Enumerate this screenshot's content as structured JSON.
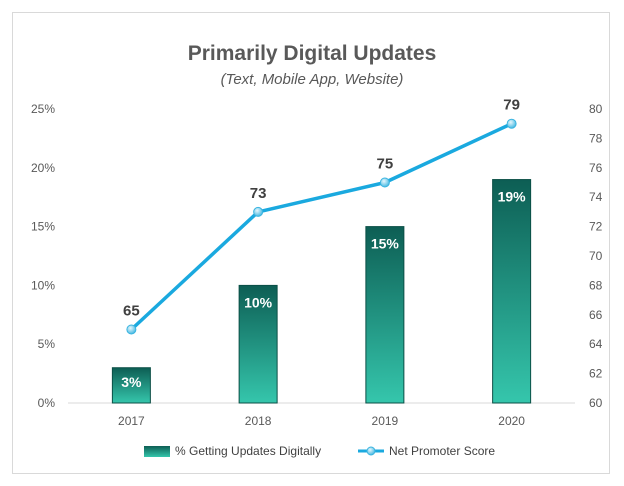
{
  "chart_data": {
    "type": "bar",
    "title": "Primarily Digital Updates",
    "subtitle": "(Text, Mobile App, Website)",
    "categories": [
      "2017",
      "2018",
      "2019",
      "2020"
    ],
    "series": [
      {
        "name": "% Getting Updates Digitally",
        "type": "bar",
        "axis": "left",
        "values": [
          3,
          10,
          15,
          19
        ],
        "labels": [
          "3%",
          "10%",
          "15%",
          "19%"
        ],
        "color": "#1a9a87"
      },
      {
        "name": "Net Promoter Score",
        "type": "line",
        "axis": "right",
        "values": [
          65,
          73,
          75,
          79
        ],
        "labels": [
          "65",
          "73",
          "75",
          "79"
        ],
        "color": "#1aa9df"
      }
    ],
    "y_left": {
      "min": 0,
      "max": 25,
      "step": 5,
      "ticks": [
        "0%",
        "5%",
        "10%",
        "15%",
        "20%",
        "25%"
      ]
    },
    "y_right": {
      "min": 60,
      "max": 80,
      "step": 2,
      "ticks": [
        "60",
        "62",
        "64",
        "66",
        "68",
        "70",
        "72",
        "74",
        "76",
        "78",
        "80"
      ]
    },
    "grid": false,
    "legend": "bottom"
  }
}
